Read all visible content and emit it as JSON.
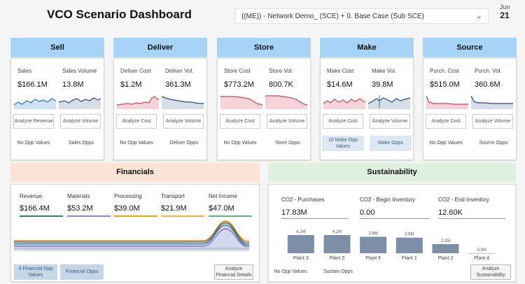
{
  "header": {
    "title": "VCO Scenario Dashboard",
    "scenario_value": "((ME)) - Network Demo_ (SCE) + 0. Base Case (Sub SCE)",
    "date_month": "Jun",
    "date_day": "21"
  },
  "colors": {
    "category_header": "#a7d3f7",
    "financials_header": "#fbe3d6",
    "sustainability_header": "#dff0e0",
    "blue_series": "#2f6fb6",
    "red_series": "#c4485a",
    "navy_series": "#2e4a7a"
  },
  "categories": [
    {
      "name": "Sell",
      "metrics": [
        {
          "label": "Sales",
          "value": "$166.1M"
        },
        {
          "label": "Sales Volume",
          "value": "13.8M"
        }
      ],
      "buttons": [
        "Analyze Revenue",
        "Analyze Volume"
      ],
      "opps": [
        "No Opp Values",
        "Sales Opps"
      ]
    },
    {
      "name": "Deliver",
      "metrics": [
        {
          "label": "Deliver Cost",
          "value": "$1.2M"
        },
        {
          "label": "Deliver Vol.",
          "value": "361.3M"
        }
      ],
      "buttons": [
        "Analyze Cost",
        "Analyze Volume"
      ],
      "opps": [
        "No Opp Values",
        "Deliver Opps"
      ]
    },
    {
      "name": "Store",
      "metrics": [
        {
          "label": "Store Cost",
          "value": "$773.2M"
        },
        {
          "label": "Store Vol.",
          "value": "800.7K"
        }
      ],
      "buttons": [
        "Analyze Cost",
        "Analyze Volume"
      ],
      "opps": [
        "No Opp Values",
        "Store Opps"
      ]
    },
    {
      "name": "Make",
      "metrics": [
        {
          "label": "Make Cost",
          "value": "$14.6M"
        },
        {
          "label": "Make Vol.",
          "value": "39.8M"
        }
      ],
      "buttons": [
        "Analyze Cost",
        "Analyze Volume"
      ],
      "opps": [
        "10 Make Opp Values",
        "Make Opps"
      ]
    },
    {
      "name": "Source",
      "metrics": [
        {
          "label": "Purch. Cost",
          "value": "$515.0M"
        },
        {
          "label": "Purch. Vol.",
          "value": "360.6M"
        }
      ],
      "buttons": [
        "Analyze Cost",
        "Analyze Volume"
      ],
      "opps": [
        "No Opp Values",
        "Source Opps"
      ]
    }
  ],
  "financials": {
    "title": "Financials",
    "metrics": [
      {
        "label": "Revenue",
        "value": "$166.4M",
        "color": "#2e8b57"
      },
      {
        "label": "Materials",
        "value": "$53.2M",
        "color": "#9b7fd0"
      },
      {
        "label": "Processing",
        "value": "$39.0M",
        "color": "#e0b000"
      },
      {
        "label": "Transport",
        "value": "$21.9M",
        "color": "#d8c03a"
      },
      {
        "label": "Net Income",
        "value": "$47.0M",
        "color": "#5cb87a"
      }
    ],
    "buttons": {
      "opp_values": "4 Financial Opp Values",
      "opps": "Financial Opps",
      "analyze": "Analyze Financial Details"
    }
  },
  "sustainability": {
    "title": "Sustainability",
    "metrics": [
      {
        "label": "CO2 - Purchases",
        "value": "17.83M"
      },
      {
        "label": "CO2 - Begin Inventory",
        "value": "0.00"
      },
      {
        "label": "CO2 - End Inventory",
        "value": "12.60K"
      }
    ],
    "buttons": {
      "opp_values": "No Opp Values",
      "opps": "Sustain Opps",
      "analyze": "Analyze Sustainability"
    }
  },
  "chart_data": {
    "type": "bar",
    "categories": [
      "Plant 3",
      "Plant 5",
      "Plant 6",
      "Plant 1",
      "Plant 2",
      "Plant 4"
    ],
    "values": [
      4.2,
      4.2,
      3.8,
      3.6,
      2.1,
      0.0
    ],
    "data_labels": [
      "4.2M",
      "4.2M",
      "3.8M",
      "3.6M",
      "2.1M",
      "0.0M"
    ],
    "title": "",
    "xlabel": "",
    "ylabel": ""
  }
}
